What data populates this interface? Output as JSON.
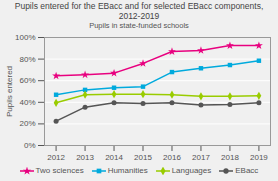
{
  "chart_data": {
    "type": "line",
    "title": "Pupils entered for the EBacc and for selected EBacc components, 2012-2019",
    "subtitle": "Pupils in state-funded schools",
    "ylabel": "Pupils entered",
    "x": [
      2012,
      2013,
      2014,
      2015,
      2016,
      2017,
      2018,
      2019
    ],
    "xlim": [
      2011.6,
      2019.4
    ],
    "xticks": [
      2012,
      2013,
      2014,
      2015,
      2016,
      2017,
      2018,
      2019
    ],
    "series": [
      {
        "name": "Two sciences",
        "color": "#e8007f",
        "marker": "star",
        "values": [
          0.645,
          0.655,
          0.67,
          0.76,
          0.87,
          0.88,
          0.925,
          0.925
        ]
      },
      {
        "name": "Humanities",
        "color": "#00aadd",
        "marker": "square",
        "values": [
          0.47,
          0.515,
          0.535,
          0.545,
          0.68,
          0.715,
          0.745,
          0.785
        ]
      },
      {
        "name": "Languages",
        "color": "#99cc00",
        "marker": "diamond",
        "values": [
          0.395,
          0.47,
          0.475,
          0.475,
          0.47,
          0.455,
          0.455,
          0.46
        ]
      },
      {
        "name": "EBacc",
        "color": "#555555",
        "marker": "circle",
        "values": [
          0.225,
          0.355,
          0.395,
          0.39,
          0.395,
          0.375,
          0.38,
          0.395
        ]
      }
    ],
    "ylim": [
      0,
      1.0
    ],
    "yticks": [
      {
        "value": 0.0,
        "label": "0%"
      },
      {
        "value": 0.2,
        "label": "20%"
      },
      {
        "value": 0.4,
        "label": "40%"
      },
      {
        "value": 0.6,
        "label": "60%"
      },
      {
        "value": 0.8,
        "label": "80%"
      },
      {
        "value": 1.0,
        "label": "100%"
      }
    ],
    "grid": true,
    "legend": "bottom"
  }
}
